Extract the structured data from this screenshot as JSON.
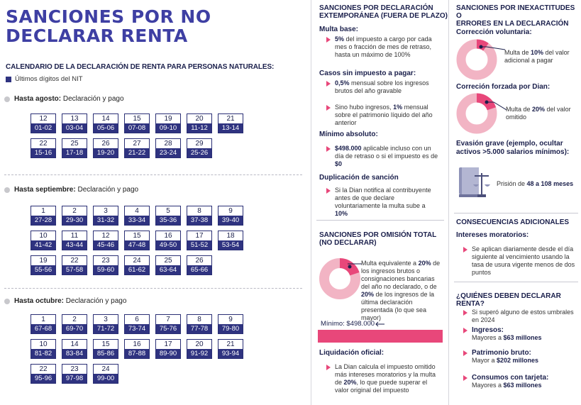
{
  "title_line1": "SANCIONES POR NO",
  "title_line2": "DECLARAR RENTA",
  "calendar": {
    "heading": "CALENDARIO DE LA DECLARACIÓN DE RENTA PARA PERSONAS NATURALES:",
    "legend": "Últimos dígitos del NIT",
    "groups": [
      {
        "label_bold": "Hasta agosto:",
        "label_rest": " Declaración y pago",
        "cells": [
          [
            "12",
            "01-02"
          ],
          [
            "13",
            "03-04"
          ],
          [
            "14",
            "05-06"
          ],
          [
            "15",
            "07-08"
          ],
          [
            "19",
            "09-10"
          ],
          [
            "20",
            "11-12"
          ],
          [
            "21",
            "13-14"
          ],
          [
            "22",
            "15-16"
          ],
          [
            "25",
            "17-18"
          ],
          [
            "26",
            "19-20"
          ],
          [
            "27",
            "21-22"
          ],
          [
            "28",
            "23-24"
          ],
          [
            "29",
            "25-26"
          ]
        ]
      },
      {
        "label_bold": "Hasta septiembre:",
        "label_rest": " Declaración y pago",
        "cells": [
          [
            "1",
            "27-28"
          ],
          [
            "2",
            "29-30"
          ],
          [
            "3",
            "31-32"
          ],
          [
            "4",
            "33-34"
          ],
          [
            "5",
            "35-36"
          ],
          [
            "8",
            "37-38"
          ],
          [
            "9",
            "39-40"
          ],
          [
            "10",
            "41-42"
          ],
          [
            "11",
            "43-44"
          ],
          [
            "12",
            "45-46"
          ],
          [
            "15",
            "47-48"
          ],
          [
            "16",
            "49-50"
          ],
          [
            "17",
            "51-52"
          ],
          [
            "18",
            "53-54"
          ],
          [
            "19",
            "55-56"
          ],
          [
            "22",
            "57-58"
          ],
          [
            "23",
            "59-60"
          ],
          [
            "24",
            "61-62"
          ],
          [
            "25",
            "63-64"
          ],
          [
            "26",
            "65-66"
          ]
        ]
      },
      {
        "label_bold": "Hasta octubre:",
        "label_rest": " Declaración y pago",
        "cells": [
          [
            "1",
            "67-68"
          ],
          [
            "2",
            "69-70"
          ],
          [
            "3",
            "71-72"
          ],
          [
            "6",
            "73-74"
          ],
          [
            "7",
            "75-76"
          ],
          [
            "8",
            "77-78"
          ],
          [
            "9",
            "79-80"
          ],
          [
            "10",
            "81-82"
          ],
          [
            "14",
            "83-84"
          ],
          [
            "15",
            "85-86"
          ],
          [
            "16",
            "87-88"
          ],
          [
            "17",
            "89-90"
          ],
          [
            "20",
            "91-92"
          ],
          [
            "21",
            "93-94"
          ],
          [
            "22",
            "95-96"
          ],
          [
            "23",
            "97-98"
          ],
          [
            "24",
            "99-00"
          ]
        ]
      }
    ]
  },
  "extemp": {
    "title1": "SANCIONES POR DECLARACIÓN",
    "title2": "EXTEMPORÁNEA (FUERA DE PLAZO)",
    "multa_base": "Multa base:",
    "mb_b": "5%",
    "mb_rest": " del impuesto a cargo por cada mes o fracción de mes de retraso, hasta un máximo de 100%",
    "casos": "Casos sin impuesto a pagar:",
    "c1_b": "0,5%",
    "c1_rest": " mensual sobre los ingresos brutos del año gravable",
    "c2_pre": "Sino hubo ingresos, ",
    "c2_b": "1%",
    "c2_rest": " mensual sobre el patrimonio líquido del año anterior",
    "minimo": "Mínimo absoluto:",
    "m_b": "$498.000",
    "m_rest": " aplicable incluso con un día de retraso o si el impuesto es de ",
    "m_b2": "$0",
    "dup": "Duplicación de sanción",
    "dup_pre": "Si la Dian notifica al contribuyente antes de que declare voluntariamente la multa sube a ",
    "dup_b": "10%"
  },
  "omision": {
    "title1": "SANCIONES POR OMISIÓN TOTAL",
    "title2": "(NO DECLARAR)",
    "t_pre": "Multa equivalente a ",
    "t_b1": "20%",
    "t_mid": " de los ingresos brutos o consignaciones bancarias del año no declarado, o de ",
    "t_b2": "20%",
    "t_rest": " de los ingresos de la última declaración presentada (lo que sea mayor)",
    "minimo": "Mínimo: $498.000",
    "liq": "Liquidación oficial:",
    "liq_pre": "La Dian calcula el impuesto omitido más intereses moratorios y la multa de ",
    "liq_b": "20%",
    "liq_rest": ", lo que puede superar el valor original del impuesto"
  },
  "inexact": {
    "title1": "SANCIONES POR INEXACTITUDES O",
    "title2": "ERRORES EN LA DECLARACIÓN",
    "corr": "Corrección voluntaria:",
    "corr_pre": "Multa de ",
    "corr_b": "10%",
    "corr_rest": " del valor adicional a pagar",
    "dian": "Correción forzada por Dian:",
    "dian_pre": "Multa de ",
    "dian_b": "20%",
    "dian_rest": " del valor omitido",
    "evasion": "Evasión grave (ejemplo, ocultar activos >5.000 salarios mínimos):",
    "prision_pre": "Prisión de ",
    "prision_b": "48 a 108 meses"
  },
  "consec": {
    "title": "CONSECUENCIAS ADICIONALES",
    "intereses": "Intereses moratorios:",
    "int_text": "Se aplican diariamente desde el día siguiente al vencimiento usando la tasa de usura vigente menos de dos puntos"
  },
  "quienes": {
    "title": "¿QUIÉNES DEBEN DECLARAR RENTA?",
    "intro": "Si superó alguno de estos umbrales en 2024",
    "items": [
      {
        "label": "Ingresos:",
        "pre": "Mayores a ",
        "val": "$63 millones"
      },
      {
        "label": "Patrimonio bruto:",
        "pre": "Mayor a ",
        "val": "$202 millones"
      },
      {
        "label": "Consumos con tarjeta:",
        "pre": "Mayores a ",
        "val": "$63 millones"
      }
    ]
  },
  "colors": {
    "navy": "#2f3380",
    "pink": "#e8477a",
    "lightpink": "#f2b4c4",
    "title": "#3e3fa3"
  }
}
